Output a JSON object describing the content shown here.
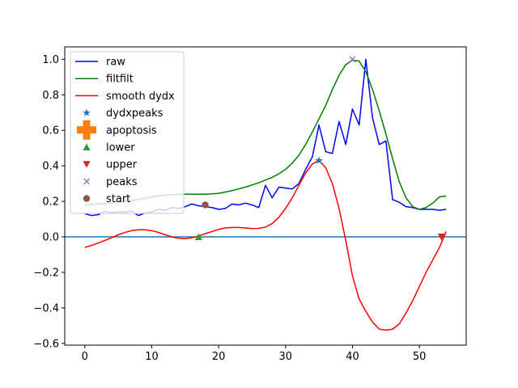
{
  "chart_data": {
    "type": "line",
    "title": "",
    "xlabel": "",
    "ylabel": "",
    "xlim": [
      -3,
      57
    ],
    "ylim": [
      -0.61,
      1.07
    ],
    "xticks": [
      0,
      10,
      20,
      30,
      40,
      50
    ],
    "yticks": [
      -0.6,
      -0.4,
      -0.2,
      0.0,
      0.2,
      0.4,
      0.6,
      0.8,
      1.0
    ],
    "xtick_labels": [
      "0",
      "10",
      "20",
      "30",
      "40",
      "50"
    ],
    "ytick_labels": [
      "−0.6",
      "−0.4",
      "−0.2",
      "0.0",
      "0.2",
      "0.4",
      "0.6",
      "0.8",
      "1.0"
    ],
    "grid": false,
    "legend_position": "upper-left",
    "hline": {
      "y": 0.0,
      "color": "#1f77b4"
    },
    "series": [
      {
        "name": "raw",
        "color": "#0000ff",
        "x": [
          0,
          1,
          2,
          3,
          4,
          5,
          6,
          7,
          8,
          9,
          10,
          11,
          12,
          13,
          14,
          15,
          16,
          17,
          18,
          19,
          20,
          21,
          22,
          23,
          24,
          25,
          26,
          27,
          28,
          29,
          30,
          31,
          32,
          33,
          34,
          35,
          36,
          37,
          38,
          39,
          40,
          41,
          42,
          43,
          44,
          45,
          46,
          47,
          48,
          49,
          50,
          51,
          52,
          53,
          54
        ],
        "y": [
          0.13,
          0.12,
          0.125,
          0.145,
          0.135,
          0.14,
          0.14,
          0.145,
          0.12,
          0.135,
          0.14,
          0.155,
          0.15,
          0.165,
          0.16,
          0.17,
          0.185,
          0.175,
          0.17,
          0.165,
          0.155,
          0.16,
          0.185,
          0.18,
          0.19,
          0.18,
          0.165,
          0.29,
          0.22,
          0.28,
          0.275,
          0.27,
          0.3,
          0.38,
          0.45,
          0.63,
          0.48,
          0.47,
          0.65,
          0.52,
          0.72,
          0.63,
          1.0,
          0.67,
          0.52,
          0.54,
          0.21,
          0.195,
          0.17,
          0.165,
          0.155,
          0.155,
          0.155,
          0.15,
          0.155
        ]
      },
      {
        "name": "filtfilt",
        "color": "#008000",
        "x": [
          0,
          2,
          4,
          6,
          8,
          10,
          12,
          14,
          16,
          18,
          20,
          22,
          24,
          26,
          28,
          29,
          30,
          31,
          32,
          33,
          34,
          35,
          36,
          37,
          38,
          39,
          40,
          41,
          42,
          43,
          44,
          45,
          46,
          47,
          48,
          49,
          50,
          51,
          52,
          53,
          54
        ],
        "y": [
          0.18,
          0.185,
          0.19,
          0.2,
          0.21,
          0.225,
          0.235,
          0.24,
          0.24,
          0.24,
          0.245,
          0.26,
          0.28,
          0.305,
          0.335,
          0.355,
          0.38,
          0.415,
          0.46,
          0.52,
          0.59,
          0.665,
          0.74,
          0.83,
          0.91,
          0.97,
          0.995,
          0.99,
          0.93,
          0.83,
          0.71,
          0.58,
          0.44,
          0.31,
          0.22,
          0.17,
          0.155,
          0.165,
          0.19,
          0.225,
          0.23
        ]
      },
      {
        "name": "smooth dydx",
        "color": "#ff0000",
        "x": [
          0,
          1,
          2,
          3,
          4,
          5,
          6,
          7,
          8,
          9,
          10,
          11,
          12,
          13,
          14,
          15,
          16,
          17,
          18,
          19,
          20,
          21,
          22,
          23,
          24,
          25,
          26,
          27,
          28,
          29,
          30,
          31,
          32,
          33,
          34,
          35,
          36,
          37,
          38,
          39,
          40,
          41,
          42,
          43,
          44,
          45,
          46,
          47,
          48,
          49,
          50,
          51,
          52,
          53,
          54
        ],
        "y": [
          -0.06,
          -0.048,
          -0.035,
          -0.02,
          -0.005,
          0.012,
          0.025,
          0.035,
          0.04,
          0.04,
          0.035,
          0.025,
          0.012,
          0.0,
          -0.008,
          -0.01,
          -0.005,
          0.005,
          0.018,
          0.03,
          0.042,
          0.05,
          0.053,
          0.053,
          0.05,
          0.047,
          0.048,
          0.055,
          0.075,
          0.11,
          0.16,
          0.22,
          0.29,
          0.36,
          0.41,
          0.43,
          0.39,
          0.3,
          0.16,
          -0.02,
          -0.22,
          -0.35,
          -0.42,
          -0.48,
          -0.52,
          -0.525,
          -0.52,
          -0.49,
          -0.43,
          -0.36,
          -0.28,
          -0.2,
          -0.13,
          -0.06,
          0.03
        ]
      }
    ],
    "markers": [
      {
        "name": "dydxpeaks",
        "symbol": "star",
        "color": "#1f77b4",
        "x": [
          35
        ],
        "y": [
          0.43
        ]
      },
      {
        "name": "apoptosis",
        "symbol": "plus",
        "color": "#ff7f0e",
        "x": [],
        "y": []
      },
      {
        "name": "lower",
        "symbol": "triangle-up",
        "color": "#2ca02c",
        "x": [
          17
        ],
        "y": [
          0.0
        ]
      },
      {
        "name": "upper",
        "symbol": "triangle-down",
        "color": "#d62728",
        "x": [
          53.3
        ],
        "y": [
          0.0
        ]
      },
      {
        "name": "peaks",
        "symbol": "x",
        "color": "#9467bd",
        "x": [
          40
        ],
        "y": [
          1.0
        ]
      },
      {
        "name": "start",
        "symbol": "circle",
        "color": "#8c564b",
        "x": [
          18
        ],
        "y": [
          0.18
        ]
      }
    ]
  }
}
